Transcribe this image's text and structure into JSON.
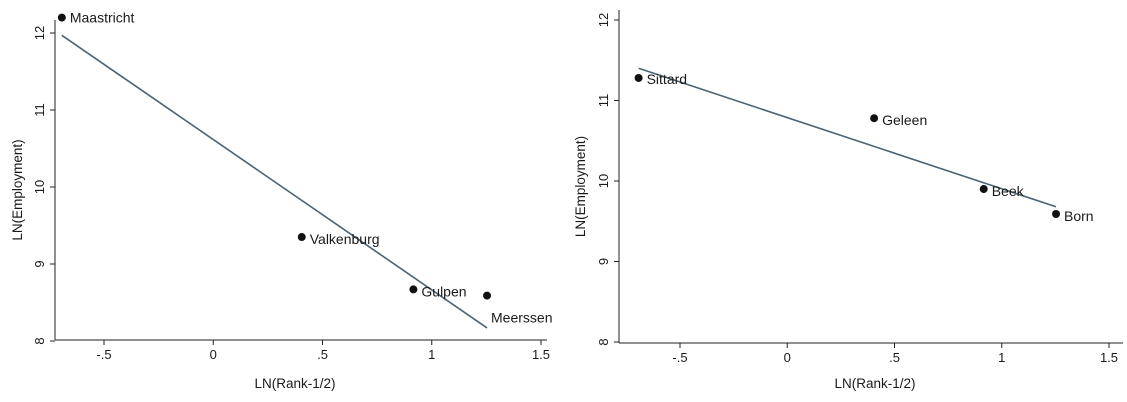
{
  "chart_data": [
    {
      "type": "scatter",
      "xlabel": "LN(Rank-1/2)",
      "ylabel": "LN(Employment)",
      "xlim": [
        -0.7,
        1.5
      ],
      "ylim": [
        8,
        12
      ],
      "xticks": [
        -0.5,
        0,
        0.5,
        1,
        1.5
      ],
      "xtick_labels": [
        "-.5",
        "0",
        ".5",
        "1",
        "1.5"
      ],
      "yticks": [
        8,
        9,
        10,
        11,
        12
      ],
      "ytick_labels": [
        "8",
        "9",
        "10",
        "11",
        "12"
      ],
      "grid": false,
      "points": [
        {
          "label": "Maastricht",
          "x": -0.693,
          "y": 12.2
        },
        {
          "label": "Valkenburg",
          "x": 0.405,
          "y": 9.35
        },
        {
          "label": "Gulpen",
          "x": 0.916,
          "y": 8.67
        },
        {
          "label": "Meerssen",
          "x": 1.253,
          "y": 8.59
        }
      ],
      "fit_line": {
        "x": [
          -0.693,
          1.253
        ],
        "y": [
          11.97,
          8.17
        ]
      }
    },
    {
      "type": "scatter",
      "xlabel": "LN(Rank-1/2)",
      "ylabel": "LN(Employment)",
      "xlim": [
        -0.75,
        1.5
      ],
      "ylim": [
        8,
        12
      ],
      "xticks": [
        -0.5,
        0,
        0.5,
        1,
        1.5
      ],
      "xtick_labels": [
        "-.5",
        "0",
        ".5",
        "1",
        "1.5"
      ],
      "yticks": [
        8,
        9,
        10,
        11,
        12
      ],
      "ytick_labels": [
        "8",
        "9",
        "10",
        "11",
        "12"
      ],
      "grid": false,
      "points": [
        {
          "label": "Sittard",
          "x": -0.693,
          "y": 11.28
        },
        {
          "label": "Geleen",
          "x": 0.405,
          "y": 10.78
        },
        {
          "label": "Beek",
          "x": 0.916,
          "y": 9.9
        },
        {
          "label": "Born",
          "x": 1.253,
          "y": 9.59
        }
      ],
      "fit_line": {
        "x": [
          -0.693,
          1.253
        ],
        "y": [
          11.4,
          9.68
        ]
      }
    }
  ]
}
